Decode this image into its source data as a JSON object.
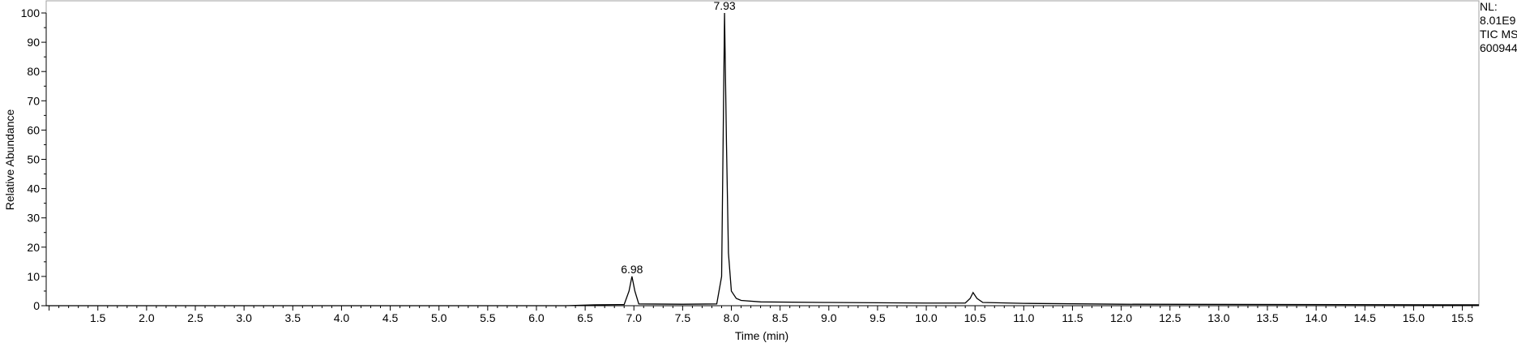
{
  "chart_data": {
    "type": "line",
    "xlabel": "Time (min)",
    "ylabel": "Relative Abundance",
    "xlim": [
      0.97,
      15.67
    ],
    "ylim": [
      0,
      100
    ],
    "x_ticks": [
      "1.5",
      "2.0",
      "2.5",
      "3.0",
      "3.5",
      "4.0",
      "4.5",
      "5.0",
      "5.5",
      "6.0",
      "6.5",
      "7.0",
      "7.5",
      "8.0",
      "8.5",
      "9.0",
      "9.5",
      "10.0",
      "10.5",
      "11.0",
      "11.5",
      "12.0",
      "12.5",
      "13.0",
      "13.5",
      "14.0",
      "14.5",
      "15.0",
      "15.5"
    ],
    "y_ticks": [
      "0",
      "10",
      "20",
      "30",
      "40",
      "50",
      "60",
      "70",
      "80",
      "90",
      "100"
    ],
    "peak_labels": [
      {
        "label": "6.98",
        "x": 6.98,
        "y": 10
      },
      {
        "label": "7.93",
        "x": 7.93,
        "y": 100
      }
    ],
    "series": [
      {
        "x": [
          0.97,
          6.3,
          6.6,
          6.9,
          6.95,
          6.98,
          7.01,
          7.05,
          7.5,
          7.85,
          7.9,
          7.92,
          7.93,
          7.95,
          7.97,
          8.0,
          8.05,
          8.1,
          8.3,
          9.0,
          10.0,
          10.4,
          10.45,
          10.48,
          10.52,
          10.58,
          11.0,
          12.0,
          15.67
        ],
        "y": [
          0,
          0,
          0.3,
          0.4,
          5,
          10,
          5,
          0.6,
          0.5,
          0.6,
          10,
          70,
          100,
          55,
          18,
          5,
          2.5,
          1.8,
          1.3,
          1.1,
          0.9,
          0.9,
          2.5,
          4.5,
          2.5,
          1.1,
          0.8,
          0.5,
          0.3
        ]
      }
    ]
  },
  "info": {
    "lines": [
      "NL:",
      "8.01E9",
      "TIC  MS",
      "600944"
    ]
  }
}
